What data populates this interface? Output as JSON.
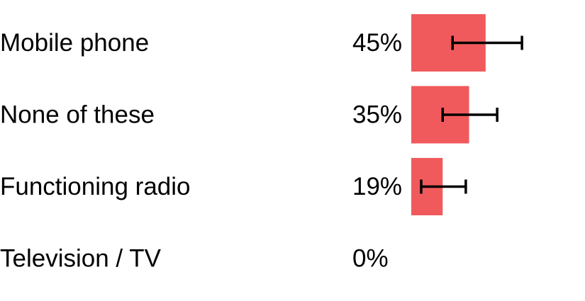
{
  "chart_data": {
    "type": "bar",
    "orientation": "horizontal",
    "categories": [
      "Mobile phone",
      "None of these",
      "Functioning radio",
      "Television / TV"
    ],
    "values": [
      45,
      35,
      19,
      0
    ],
    "value_labels": [
      "45%",
      "35%",
      "19%",
      "0%"
    ],
    "error_low": [
      25,
      19,
      6,
      null
    ],
    "error_high": [
      67,
      52,
      33,
      null
    ],
    "xlim": [
      0,
      100
    ],
    "title": "",
    "xlabel": "",
    "ylabel": "",
    "grid": false,
    "legend": "none",
    "bar_color": "#f05a5c",
    "error_bar_color": "#000000"
  }
}
